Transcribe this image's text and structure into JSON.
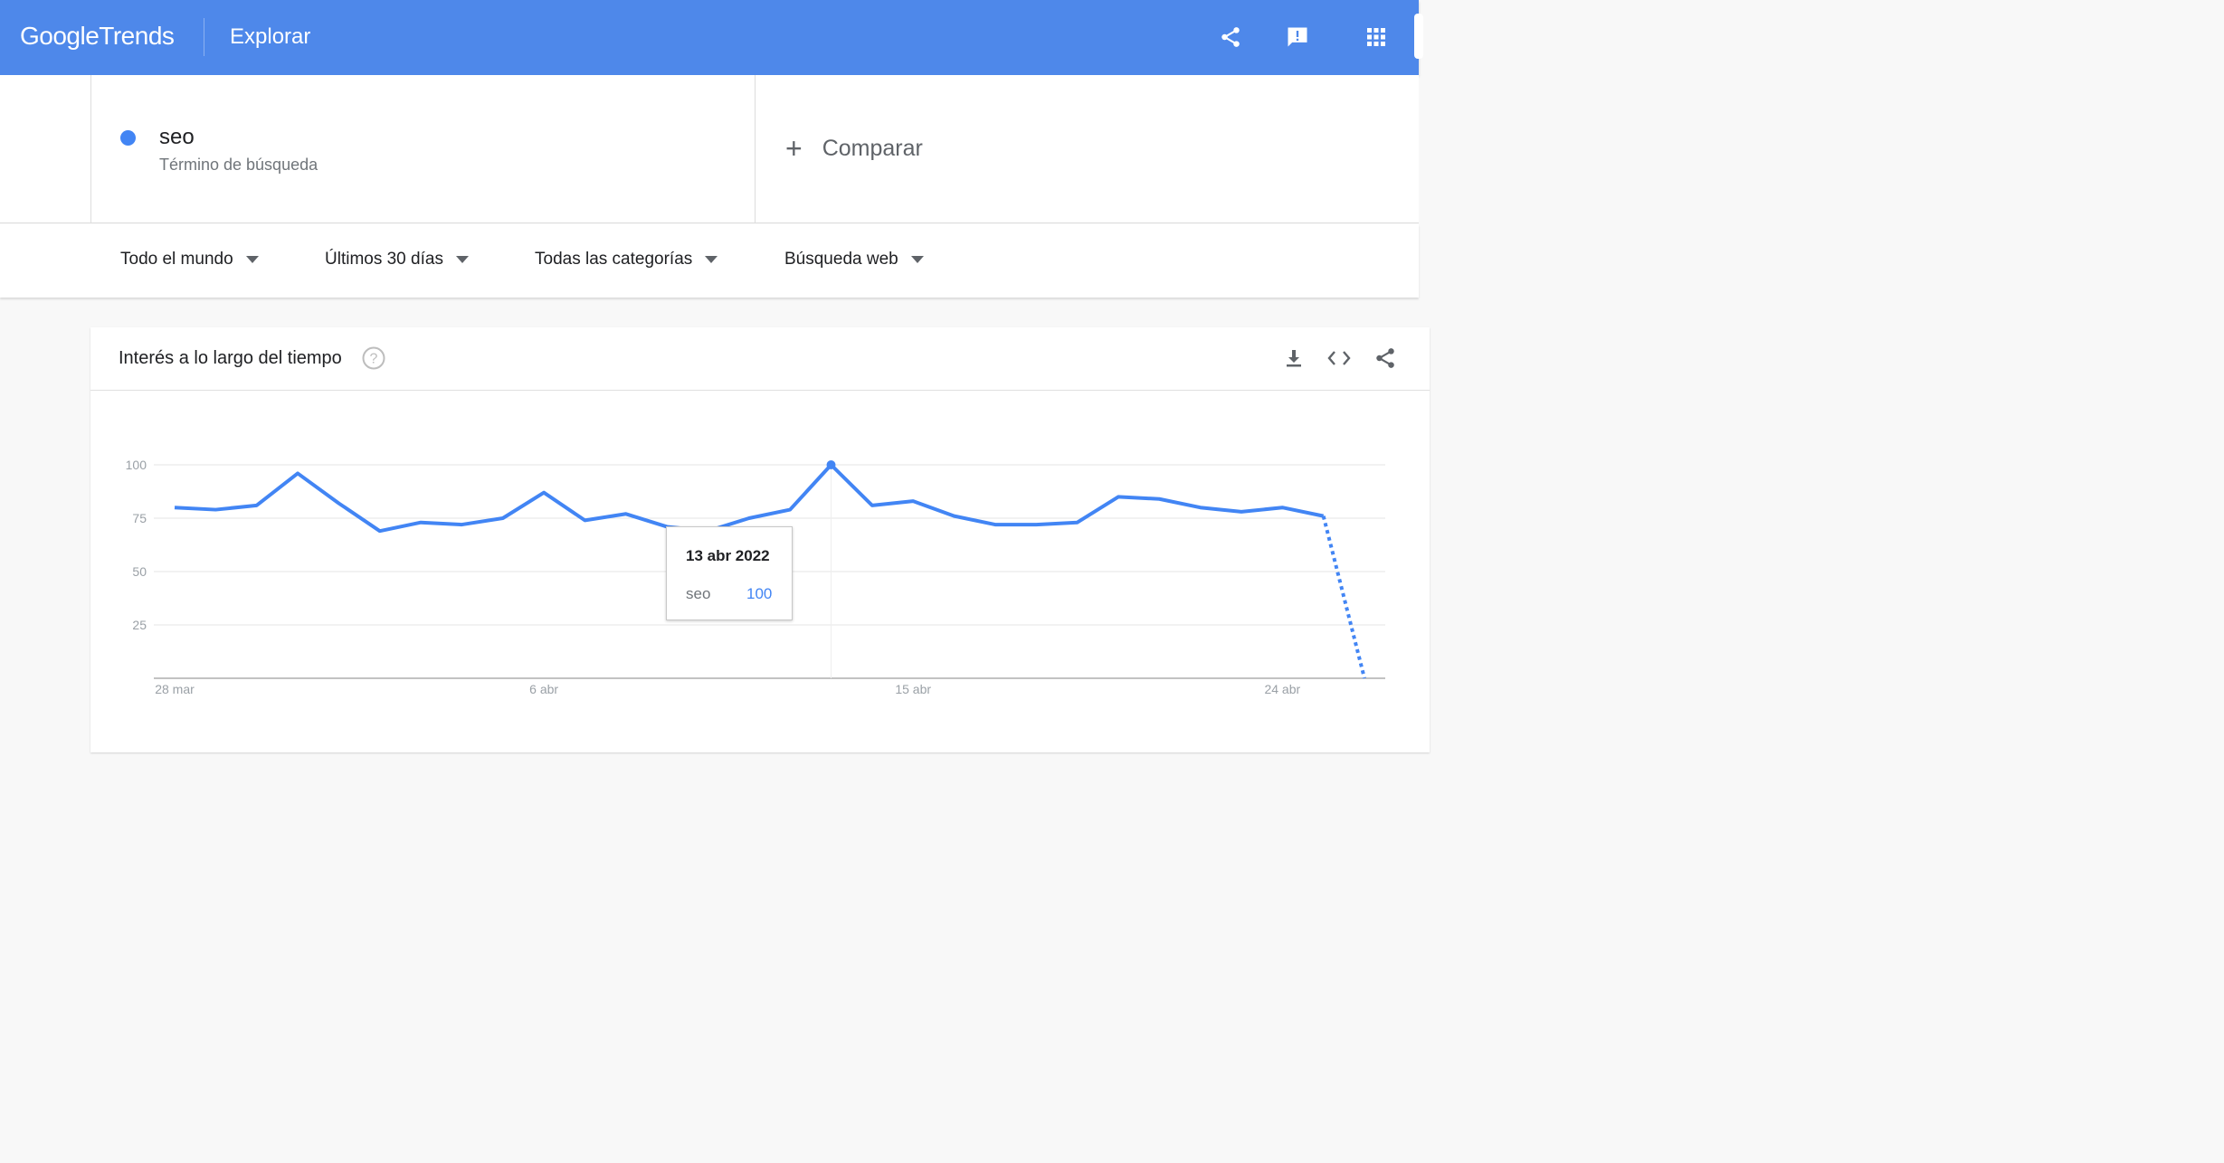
{
  "header": {
    "logo_google": "Google",
    "logo_trends": "Trends",
    "page_title": "Explorar",
    "brand_color": "#4e88ea",
    "icons": [
      "share-icon",
      "feedback-icon",
      "apps-grid-icon"
    ]
  },
  "search": {
    "term": "seo",
    "term_type": "Término de búsqueda",
    "term_color": "#4285f4",
    "compare_label": "Comparar"
  },
  "filters": {
    "region": "Todo el mundo",
    "period": "Últimos 30 días",
    "category": "Todas las categorías",
    "search_type": "Búsqueda web"
  },
  "card": {
    "title": "Interés a lo largo del tiempo",
    "icons": [
      "help-icon",
      "download-icon",
      "embed-code-icon",
      "share-icon"
    ]
  },
  "tooltip": {
    "date": "13 abr 2022",
    "term": "seo",
    "value": "100"
  },
  "chart_data": {
    "type": "line",
    "x": [
      "28 mar",
      "29 mar",
      "30 mar",
      "31 mar",
      "1 abr",
      "2 abr",
      "3 abr",
      "4 abr",
      "5 abr",
      "6 abr",
      "7 abr",
      "8 abr",
      "9 abr",
      "10 abr",
      "11 abr",
      "12 abr",
      "13 abr",
      "14 abr",
      "15 abr",
      "16 abr",
      "17 abr",
      "18 abr",
      "19 abr",
      "20 abr",
      "21 abr",
      "22 abr",
      "23 abr",
      "24 abr",
      "25 abr",
      "26 abr"
    ],
    "series": [
      {
        "name": "seo",
        "color": "#4285f4",
        "values": [
          80,
          79,
          81,
          96,
          82,
          69,
          73,
          72,
          75,
          87,
          74,
          77,
          71,
          69,
          75,
          79,
          100,
          81,
          83,
          76,
          72,
          72,
          73,
          85,
          84,
          80,
          78,
          80,
          76,
          0
        ],
        "partial_from_index": 28
      }
    ],
    "x_tick_labels": [
      "28 mar",
      "6 abr",
      "15 abr",
      "24 abr"
    ],
    "y_tick_labels": [
      "100",
      "75",
      "50",
      "25"
    ],
    "ylim": [
      0,
      100
    ],
    "grid": true,
    "highlight_index": 16
  }
}
